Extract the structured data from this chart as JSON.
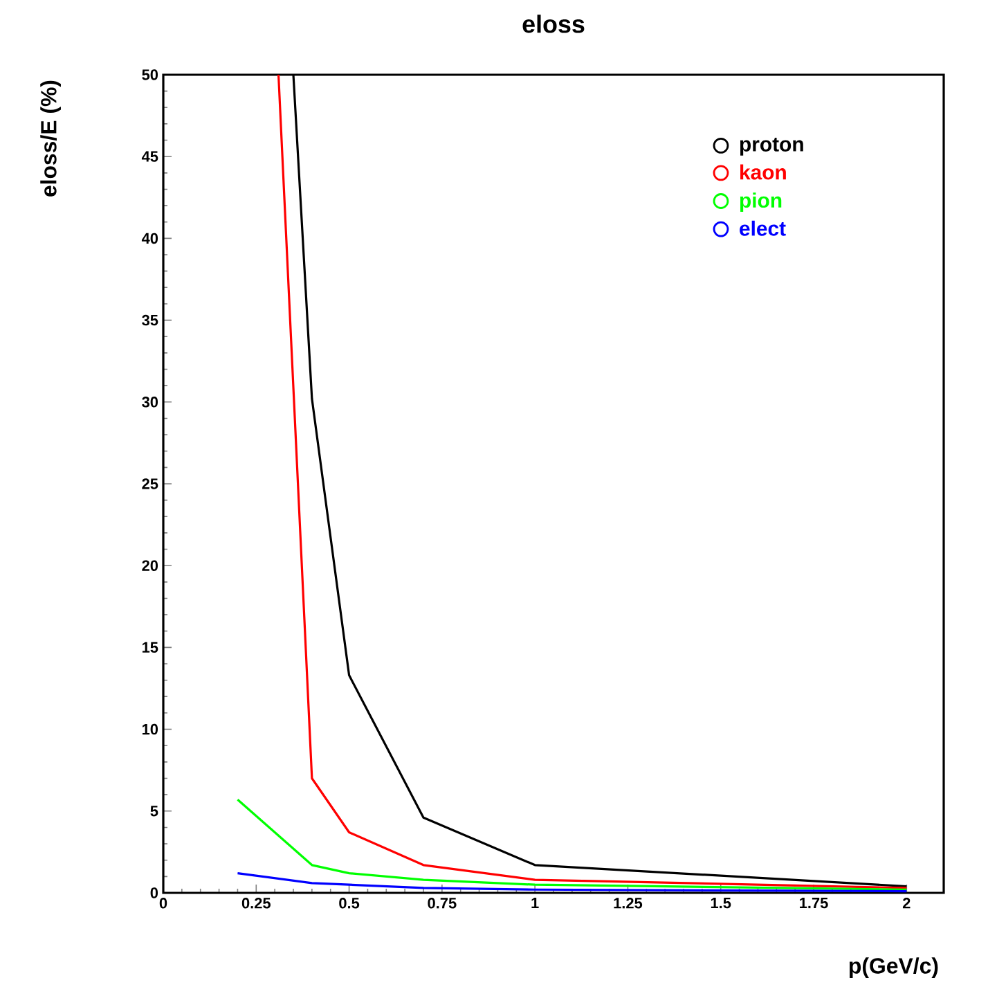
{
  "chart_data": {
    "type": "line",
    "title": "eloss",
    "xlabel": "p(GeV/c)",
    "ylabel": "eloss/E (%)",
    "x": [
      0.2,
      0.4,
      0.5,
      0.7,
      1,
      2
    ],
    "series": [
      {
        "name": "proton",
        "color": "#000000",
        "x": [
          0.35,
          0.4,
          0.5,
          0.7,
          1,
          2
        ],
        "values": [
          50,
          30.2,
          13.3,
          4.6,
          1.7,
          0.4
        ]
      },
      {
        "name": "kaon",
        "color": "#ff0000",
        "x": [
          0.31,
          0.4,
          0.5,
          0.7,
          1,
          2
        ],
        "values": [
          50,
          7.0,
          3.7,
          1.7,
          0.8,
          0.3
        ]
      },
      {
        "name": "pion",
        "color": "#00ff00",
        "values": [
          5.7,
          1.7,
          1.2,
          0.8,
          0.5,
          0.2
        ]
      },
      {
        "name": "elect",
        "color": "#0000ff",
        "values": [
          1.2,
          0.6,
          0.5,
          0.3,
          0.2,
          0.1
        ]
      }
    ],
    "xlim": [
      0,
      2.1
    ],
    "ylim": [
      0,
      50
    ],
    "xticks": [
      0,
      0.25,
      0.5,
      0.75,
      1,
      1.25,
      1.5,
      1.75,
      2
    ],
    "yticks": [
      0,
      5,
      10,
      15,
      20,
      25,
      30,
      35,
      40,
      45,
      50
    ],
    "legend": "top right",
    "grid": false
  }
}
